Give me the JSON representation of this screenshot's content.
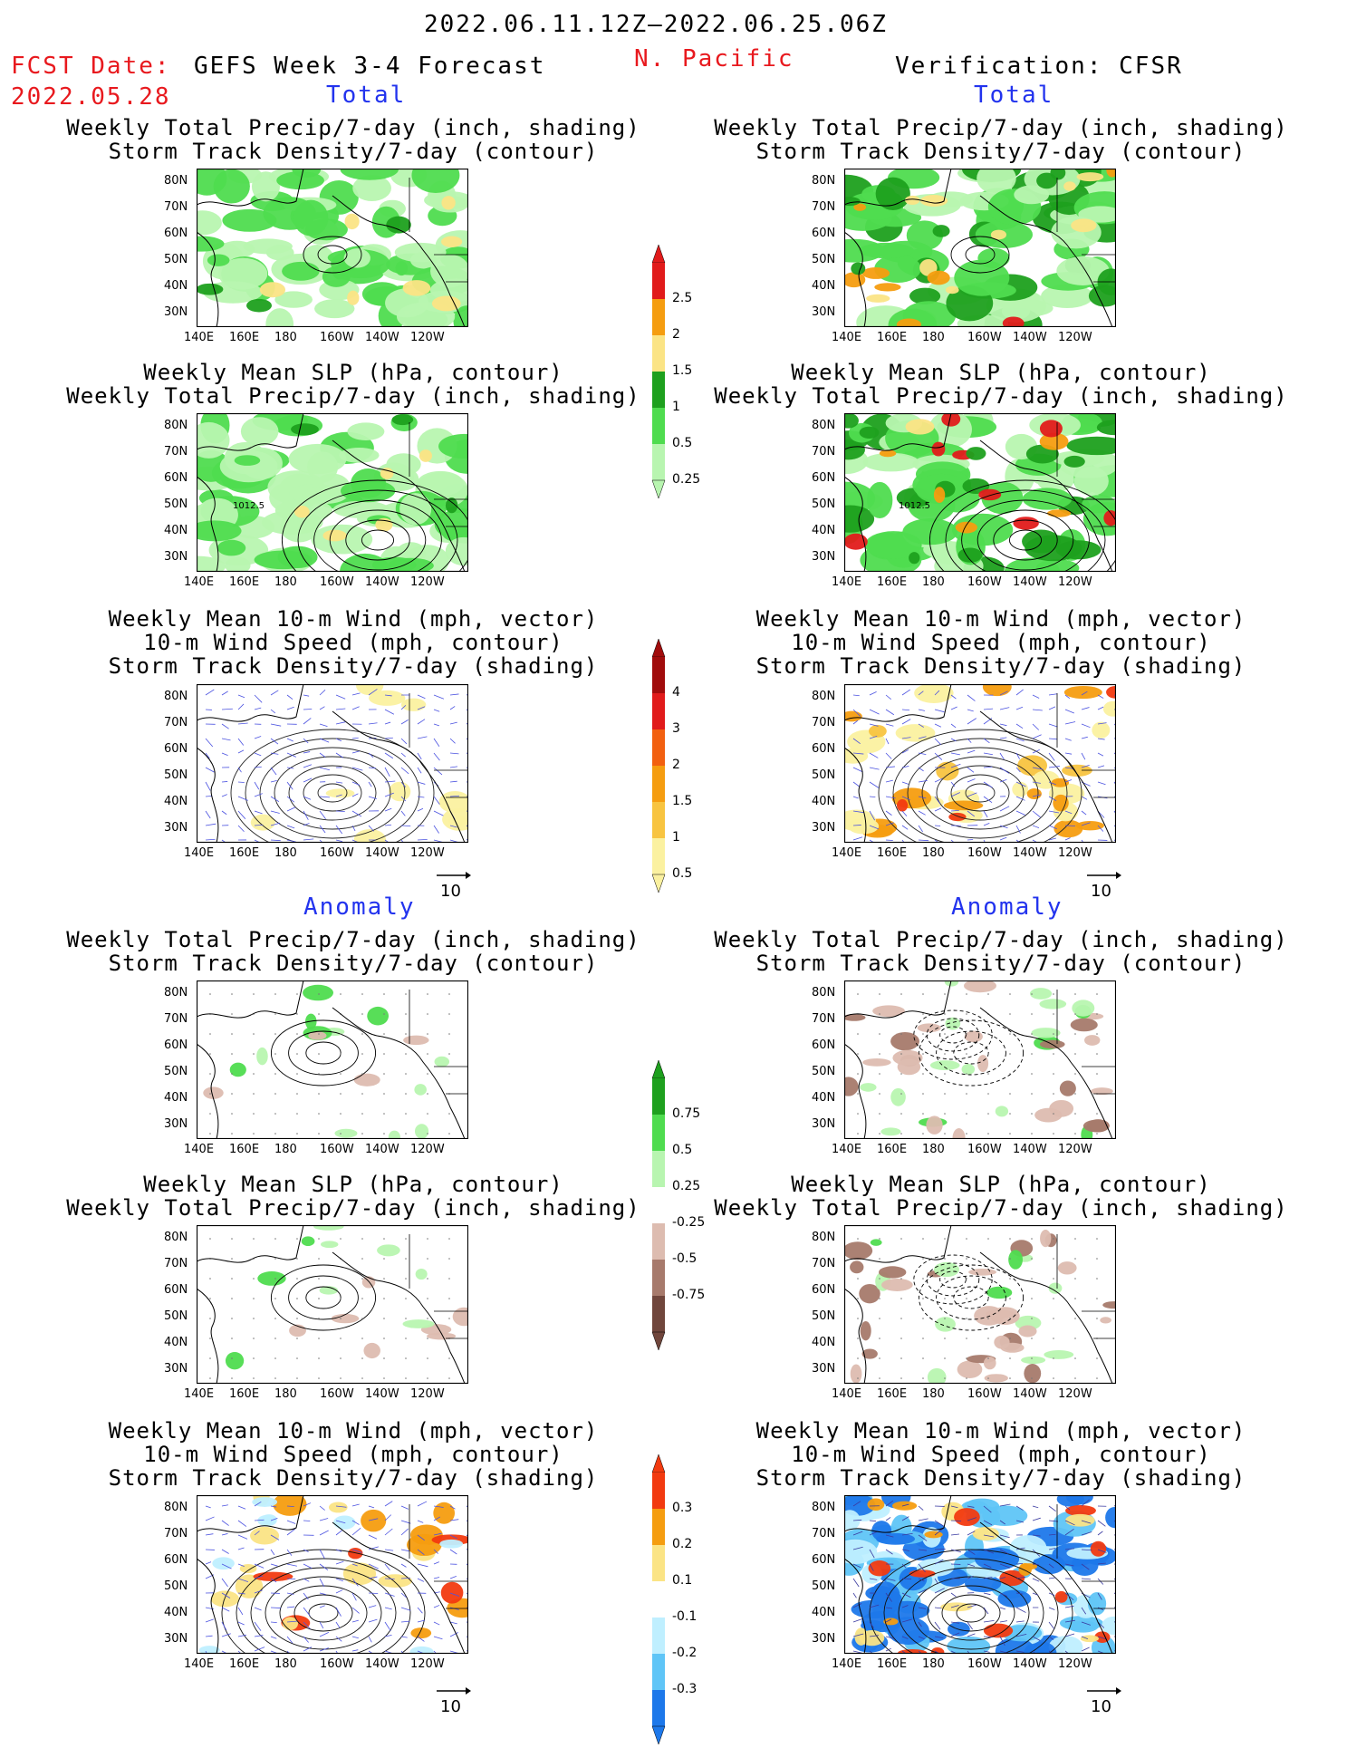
{
  "header": {
    "period": "2022.06.11.12Z–2022.06.25.06Z",
    "fcst_label": "FCST Date:",
    "fcst_date": "2022.05.28",
    "forecast_name": "GEFS Week 3-4 Forecast",
    "region": "N. Pacific",
    "verification": "Verification: CFSR"
  },
  "sections": {
    "total": "Total",
    "anomaly": "Anomaly"
  },
  "titles": {
    "precip_std": [
      "Weekly Total Precip/7-day (inch, shading)",
      "Storm Track Density/7-day (contour)"
    ],
    "slp_precip": [
      "Weekly Mean SLP (hPa, contour)",
      "Weekly Total Precip/7-day (inch, shading)"
    ],
    "wind_std": [
      "Weekly Mean 10-m Wind (mph, vector)",
      "10-m Wind Speed (mph, contour)",
      "Storm Track Density/7-day (shading)"
    ]
  },
  "axes": {
    "lon_ticks": [
      "140E",
      "160E",
      "180",
      "160W",
      "140W",
      "120W"
    ],
    "lat_ticks": [
      "80N",
      "70N",
      "60N",
      "50N",
      "40N",
      "30N"
    ]
  },
  "vector_ref": "10",
  "contour_labels": {
    "slp": "1012.5"
  },
  "colorbars": {
    "precip_total": {
      "labels": [
        "2.5",
        "2",
        "1.5",
        "1",
        "0.5",
        "0.25"
      ],
      "colors": [
        "#e11b1b",
        "#f59d10",
        "#fbe485",
        "#1ea01e",
        "#4fdc4f",
        "#b8f5b0"
      ]
    },
    "std_total": {
      "labels": [
        "4",
        "3",
        "2",
        "1.5",
        "1",
        "0.5"
      ],
      "colors": [
        "#a10c0c",
        "#e11b1b",
        "#f26010",
        "#f59d10",
        "#f8c440",
        "#fbf1a0"
      ]
    },
    "precip_anom": {
      "labels": [
        "0.75",
        "0.5",
        "0.25",
        "-0.25",
        "-0.5",
        "-0.75"
      ],
      "colors": [
        "#1ea01e",
        "#4fdc4f",
        "#b8f5b0",
        "#ffffff",
        "#ddbcb0",
        "#a77a6c",
        "#70463c"
      ]
    },
    "std_anom": {
      "labels": [
        "0.3",
        "0.2",
        "0.1",
        "-0.1",
        "-0.2",
        "-0.3"
      ],
      "colors": [
        "#f23a10",
        "#f59d10",
        "#fbe485",
        "#ffffff",
        "#bfefff",
        "#5fc5f7",
        "#1d78ea"
      ]
    }
  }
}
